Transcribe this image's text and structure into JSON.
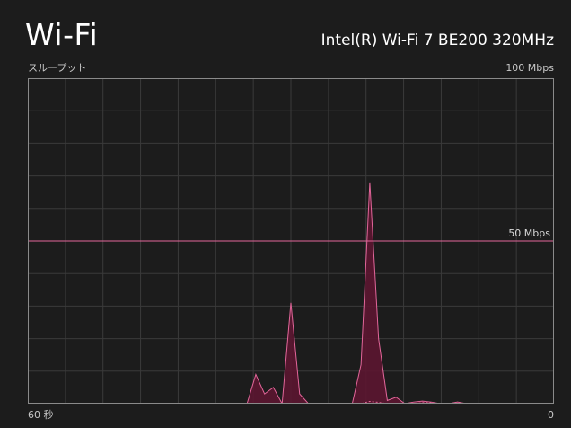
{
  "title": "Wi-Fi",
  "adapter_name": "Intel(R) Wi-Fi 7 BE200 320MHz",
  "chart": {
    "y_axis_label": "スループット",
    "y_max_label": "100 Mbps",
    "x_left_label": "60 秒",
    "x_right_label": "0",
    "reference_label": "50 Mbps"
  },
  "colors": {
    "background": "#1c1c1c",
    "grid": "#3a3a3a",
    "border": "#8a8a8a",
    "accent": "#e2669a",
    "fill": "#5c1631"
  },
  "chart_data": {
    "type": "area",
    "xlabel": "60 秒",
    "ylabel": "スループット",
    "x": [
      60,
      59,
      58,
      57,
      56,
      55,
      54,
      53,
      52,
      51,
      50,
      49,
      48,
      47,
      46,
      45,
      44,
      43,
      42,
      41,
      40,
      39,
      38,
      37,
      36,
      35,
      34,
      33,
      32,
      31,
      30,
      29,
      28,
      27,
      26,
      25,
      24,
      23,
      22,
      21,
      20,
      19,
      18,
      17,
      16,
      15,
      14,
      13,
      12,
      11,
      10,
      9,
      8,
      7,
      6,
      5,
      4,
      3,
      2,
      1,
      0
    ],
    "xlim": [
      60,
      0
    ],
    "ylim": [
      0,
      100
    ],
    "reference_line": 50,
    "series": [
      {
        "values": [
          0,
          0,
          0,
          0,
          0,
          0,
          0,
          0,
          0,
          0,
          0,
          0,
          0,
          0,
          0,
          0,
          0,
          0,
          0,
          0,
          0,
          0,
          0,
          0,
          0,
          0,
          9,
          3,
          5,
          0,
          31,
          3,
          0,
          0,
          0,
          0,
          0,
          0,
          12,
          68,
          20,
          1,
          2,
          0,
          0.5,
          0.8,
          0.5,
          0,
          0,
          0.5,
          0,
          0,
          0,
          0,
          0,
          0,
          0,
          0,
          0,
          0,
          0
        ]
      },
      {
        "values": [
          0,
          0,
          0,
          0,
          0,
          0,
          0,
          0,
          0,
          0,
          0,
          0,
          0,
          0,
          0,
          0,
          0,
          0,
          0,
          0,
          0,
          0,
          0,
          0,
          0,
          0,
          0,
          0,
          0,
          0,
          0,
          0,
          0,
          0,
          0,
          0,
          0,
          0,
          0,
          0.7,
          0.4,
          0,
          0,
          0,
          0,
          0.3,
          0.3,
          0,
          0,
          0,
          0,
          0,
          0,
          0,
          0,
          0,
          0,
          0,
          0,
          0,
          0
        ]
      }
    ]
  }
}
